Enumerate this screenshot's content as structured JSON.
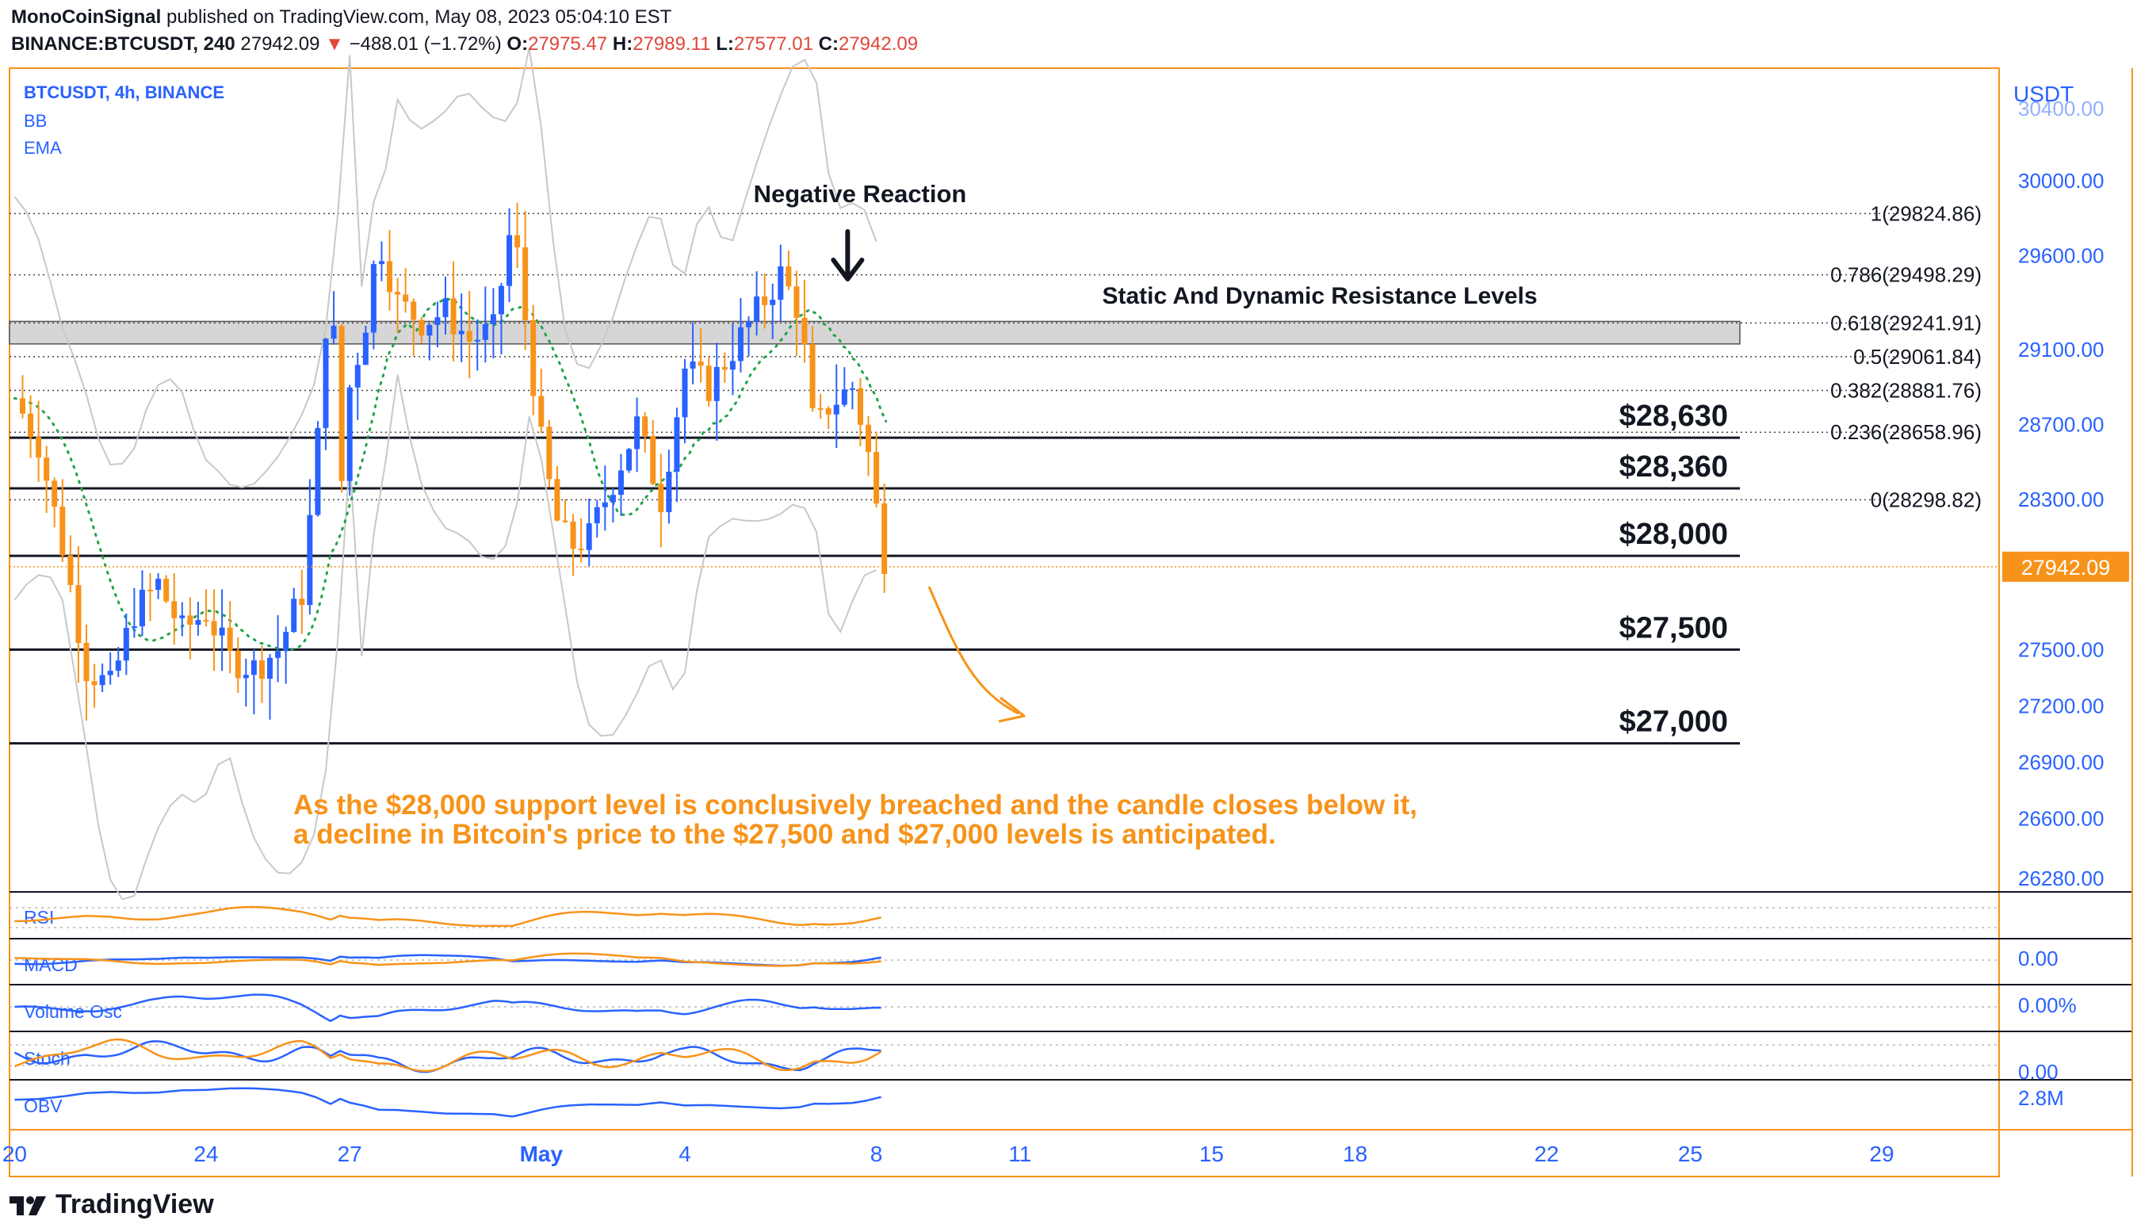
{
  "header": {
    "author": "MonoCoinSignal",
    "published": "published on TradingView.com, May 08, 2023 05:04:10 EST",
    "symbol": "BINANCE:BTCUSDT, 240",
    "last": "27942.09",
    "change": "−488.01 (−1.72%)",
    "o_label": "O:",
    "o": "27975.47",
    "h_label": "H:",
    "h": "27989.11",
    "l_label": "L:",
    "l": "27577.01",
    "c_label": "C:",
    "c": "27942.09"
  },
  "legend": {
    "title": "BTCUSDT, 4h, BINANCE",
    "bb": "BB",
    "ema": "EMA"
  },
  "footer": {
    "brand": "TradingView"
  },
  "colors": {
    "up": "#2962ff",
    "down": "#f7931a",
    "ema": "#22a34a",
    "bands": "#c8c8c8",
    "annotation": "#f7931a",
    "accent": "#f7931a",
    "scale_text": "#2962ff"
  },
  "chart_data": {
    "type": "candlestick",
    "symbol": "BTCUSDT",
    "timeframe": "4h",
    "exchange": "BINANCE",
    "currency": "USDT",
    "y_ticks": [
      "30400.00",
      "30000.00",
      "29600.00",
      "29100.00",
      "28700.00",
      "28300.00",
      "27500.00",
      "27200.00",
      "26900.00",
      "26600.00",
      "26280.00"
    ],
    "y_tick_values": [
      30400,
      30000,
      29600,
      29100,
      28700,
      28300,
      27500,
      27200,
      26900,
      26600,
      26280
    ],
    "current_price_label": "27942.09",
    "x_ticks": [
      {
        "label": "20",
        "day": 20
      },
      {
        "label": "24",
        "day": 24
      },
      {
        "label": "27",
        "day": 27
      },
      {
        "label": "May",
        "day": 31,
        "bold": true
      },
      {
        "label": "4",
        "day": 34
      },
      {
        "label": "8",
        "day": 38
      },
      {
        "label": "11",
        "day": 41
      },
      {
        "label": "15",
        "day": 45
      },
      {
        "label": "18",
        "day": 48
      },
      {
        "label": "22",
        "day": 52
      },
      {
        "label": "25",
        "day": 55
      },
      {
        "label": "29",
        "day": 59
      }
    ],
    "fib_levels": [
      {
        "label": "1(29824.86)",
        "value": 29824.86
      },
      {
        "label": "0.786(29498.29)",
        "value": 29498.29
      },
      {
        "label": "0.618(29241.91)",
        "value": 29241.91
      },
      {
        "label": "0.5(29061.84)",
        "value": 29061.84
      },
      {
        "label": "0.382(28881.76)",
        "value": 28881.76
      },
      {
        "label": "0.236(28658.96)",
        "value": 28658.96
      },
      {
        "label": "0(28298.82)",
        "value": 28298.82
      }
    ],
    "levels": [
      {
        "label": "$28,630",
        "value": 28630
      },
      {
        "label": "$28,360",
        "value": 28360
      },
      {
        "label": "$28,000",
        "value": 28000
      },
      {
        "label": "$27,500",
        "value": 27500
      },
      {
        "label": "$27,000",
        "value": 27000
      }
    ],
    "resistance_zone": [
      29130,
      29250
    ],
    "annotations": {
      "negative_reaction": "Negative Reaction",
      "resistance": "Static And Dynamic Resistance Levels",
      "note_line1": "As the $28,000 support level is conclusively breached and the candle closes below it,",
      "note_line2": "a decline in Bitcoin's price to the $27,500 and $27,000 levels is anticipated."
    },
    "close_path": [
      [
        20.0,
        28840
      ],
      [
        20.5,
        28600
      ],
      [
        21.0,
        28050
      ],
      [
        21.5,
        27400
      ],
      [
        22.0,
        27300
      ],
      [
        22.5,
        27700
      ],
      [
        23.0,
        27850
      ],
      [
        23.5,
        27600
      ],
      [
        24.0,
        27700
      ],
      [
        24.5,
        27450
      ],
      [
        25.0,
        27400
      ],
      [
        25.5,
        27500
      ],
      [
        26.0,
        27800
      ],
      [
        26.3,
        28500
      ],
      [
        26.6,
        29600
      ],
      [
        26.8,
        28300
      ],
      [
        27.0,
        28900
      ],
      [
        27.3,
        29200
      ],
      [
        27.6,
        29700
      ],
      [
        28.0,
        29350
      ],
      [
        28.5,
        29250
      ],
      [
        29.0,
        29300
      ],
      [
        29.5,
        29150
      ],
      [
        30.0,
        29200
      ],
      [
        30.4,
        29800
      ],
      [
        30.7,
        29200
      ],
      [
        31.0,
        28600
      ],
      [
        31.3,
        28200
      ],
      [
        31.6,
        28050
      ],
      [
        32.0,
        28100
      ],
      [
        32.5,
        28400
      ],
      [
        33.0,
        28700
      ],
      [
        33.5,
        28300
      ],
      [
        34.0,
        29000
      ],
      [
        34.5,
        28900
      ],
      [
        35.0,
        29100
      ],
      [
        35.5,
        29300
      ],
      [
        36.0,
        29500
      ],
      [
        36.4,
        29300
      ],
      [
        36.7,
        28650
      ],
      [
        37.0,
        28800
      ],
      [
        37.5,
        28900
      ],
      [
        37.8,
        28600
      ],
      [
        38.0,
        28250
      ],
      [
        38.2,
        27942
      ]
    ],
    "indicators": {
      "rsi": "RSI",
      "macd": "MACD",
      "macd_value": "0.00",
      "volume_osc": "Volume Osc",
      "volume_osc_value": "0.00%",
      "stoch": "Stoch",
      "stoch_value": "0.00",
      "obv": "OBV",
      "obv_value": "2.8M"
    }
  }
}
